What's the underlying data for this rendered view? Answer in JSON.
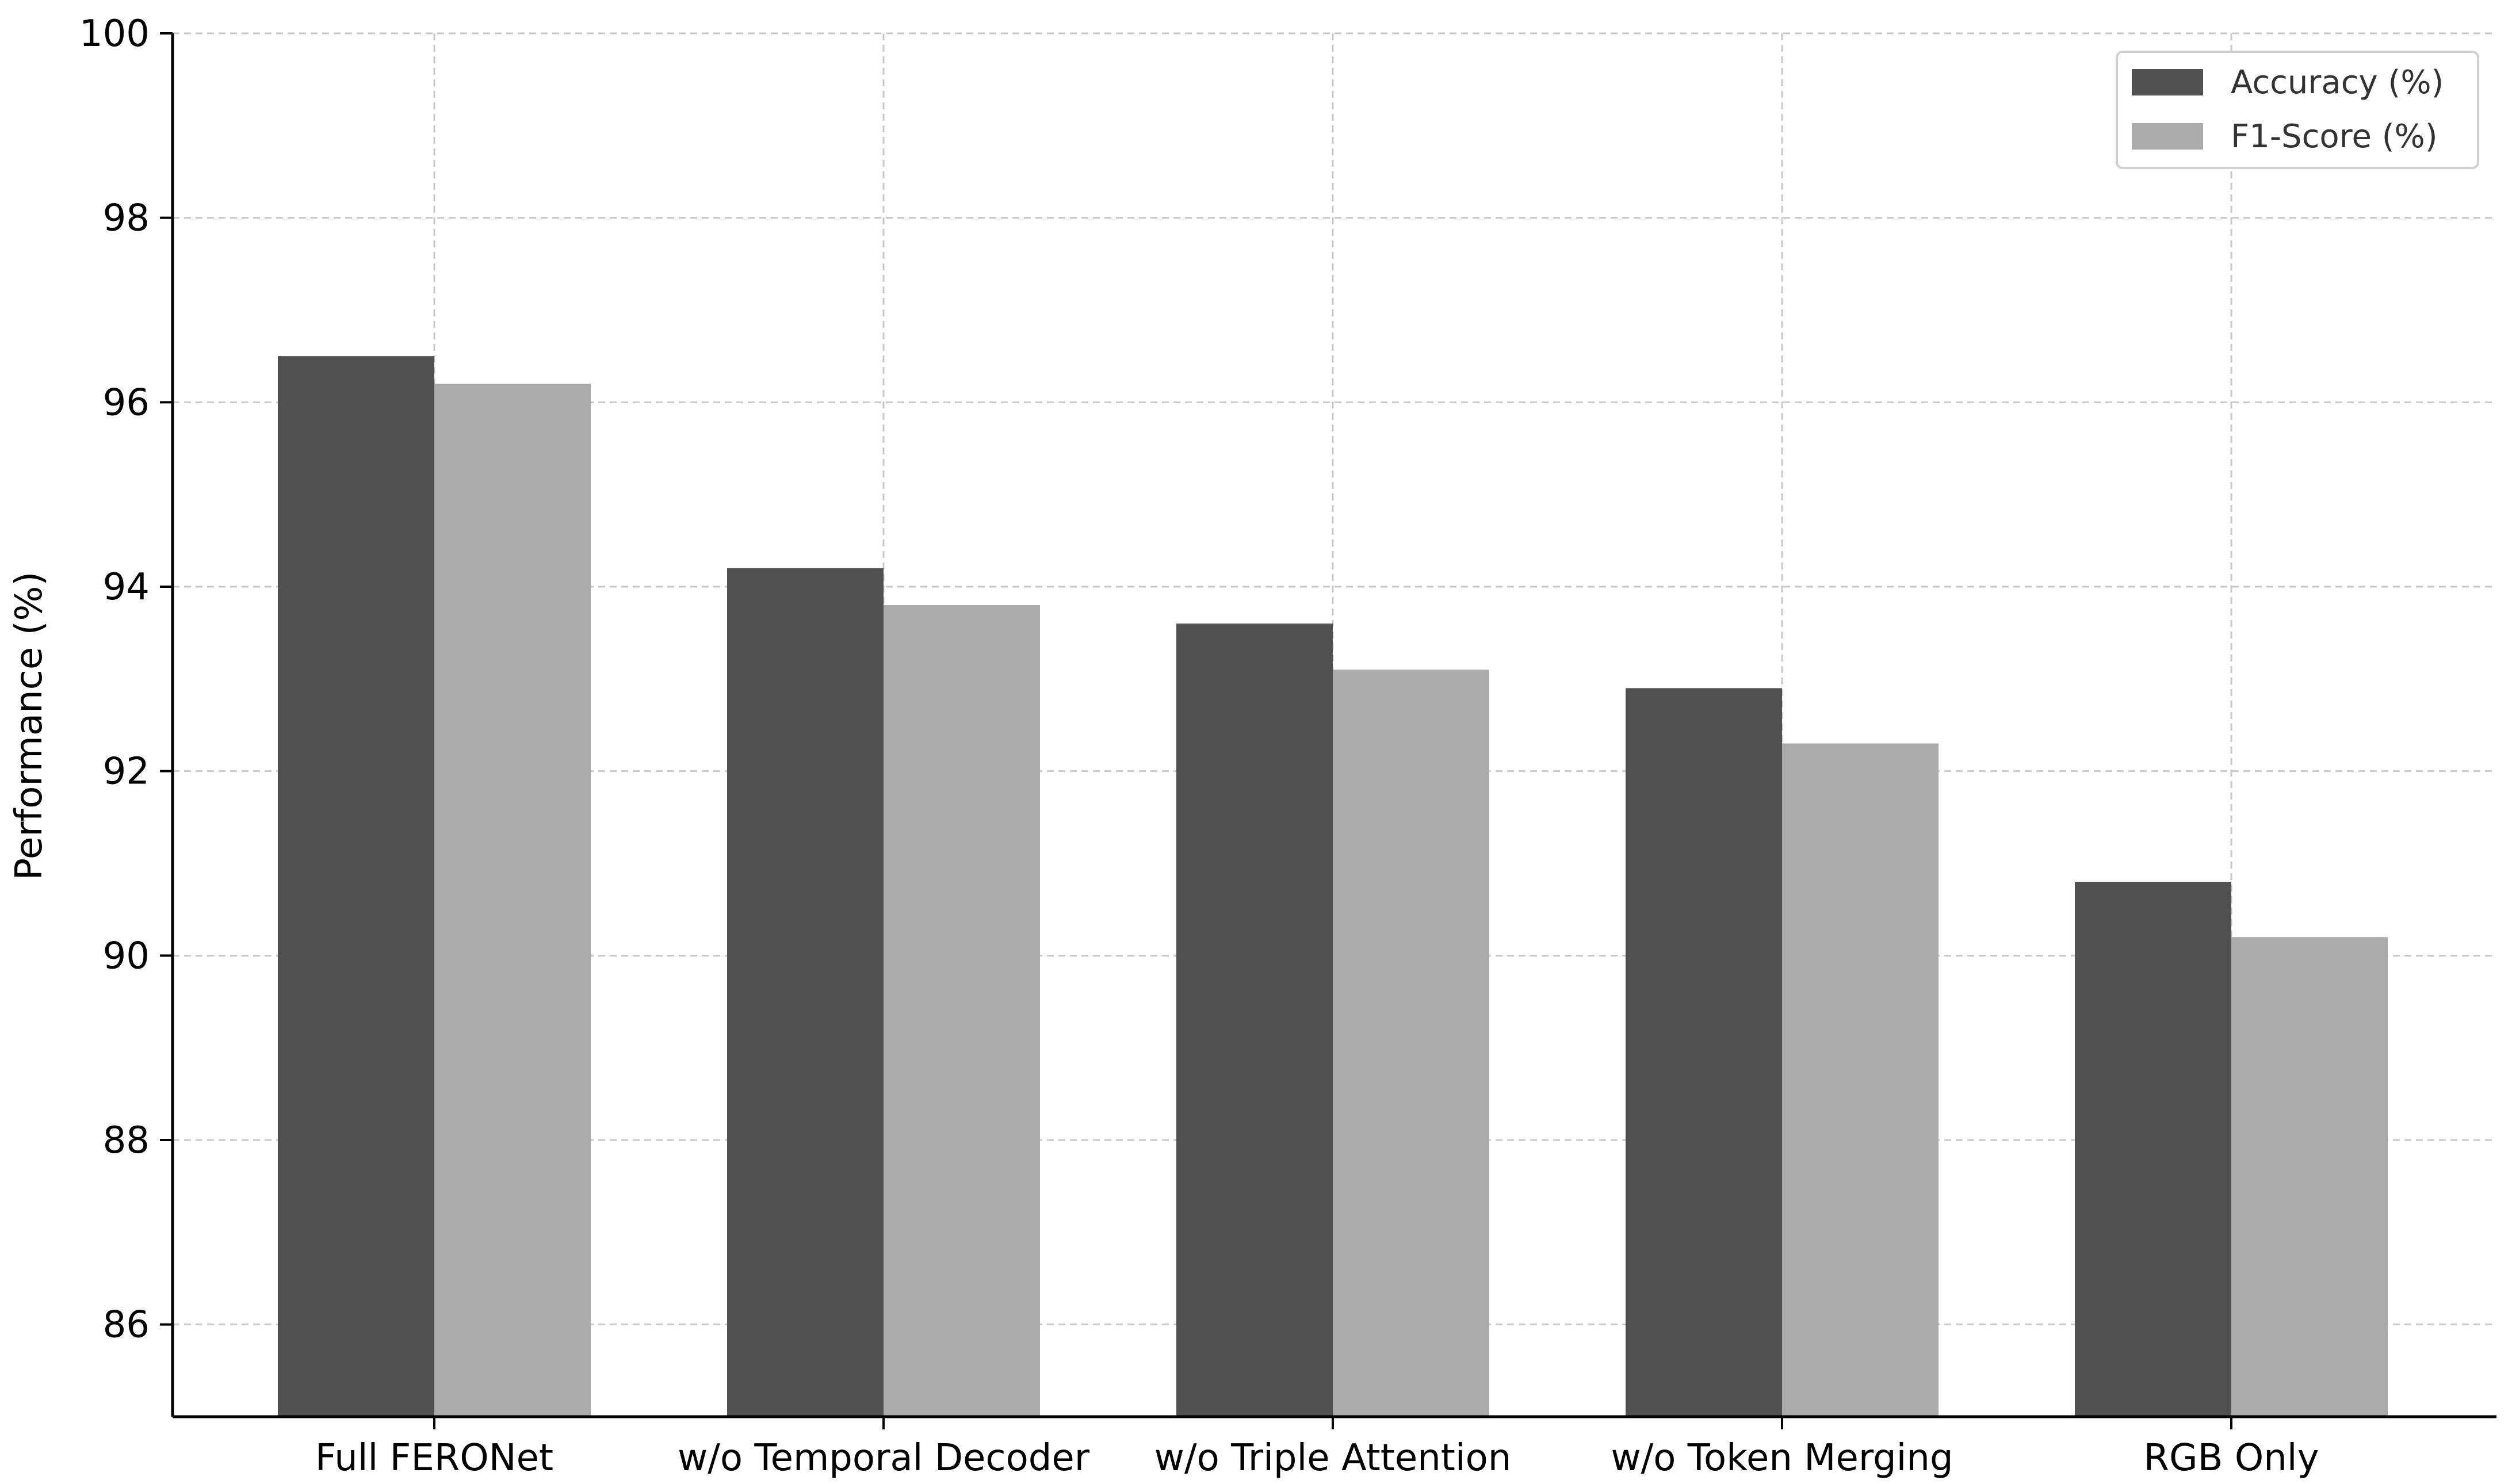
{
  "chart_data": {
    "type": "bar",
    "title": "",
    "xlabel": "",
    "ylabel": "Performance (%)",
    "categories": [
      "Full FERONet",
      "w/o Temporal Decoder",
      "w/o Triple Attention",
      "w/o Token Merging",
      "RGB Only"
    ],
    "series": [
      {
        "name": "Accuracy (%)",
        "color": "#505050",
        "values": [
          96.5,
          94.2,
          93.6,
          92.9,
          90.8
        ]
      },
      {
        "name": "F1-Score (%)",
        "color": "#aaaaaa",
        "values": [
          96.2,
          93.8,
          93.1,
          92.3,
          90.2
        ]
      }
    ],
    "ylim": [
      85,
      100
    ],
    "yticks": [
      86,
      88,
      90,
      92,
      94,
      96,
      98,
      100
    ],
    "grid": true,
    "legend_position": "top-right"
  }
}
